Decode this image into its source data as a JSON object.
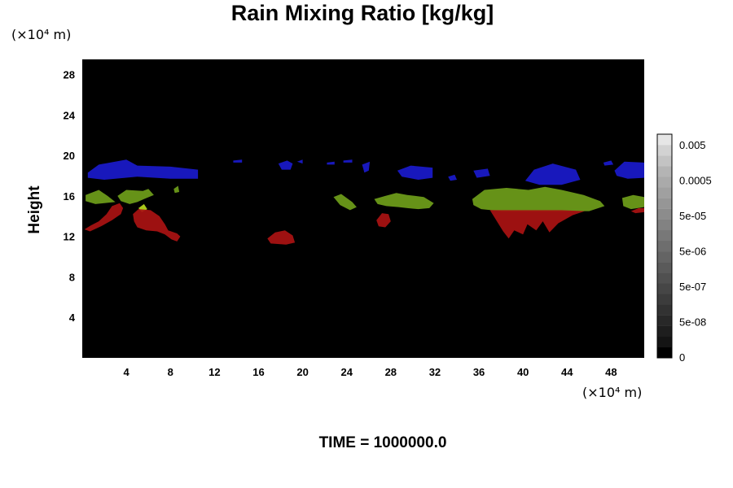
{
  "chart_data": {
    "type": "heatmap",
    "title": "Rain Mixing Ratio [kg/kg]",
    "ylabel": "Height",
    "x_unit": "(×10⁴ m)",
    "y_unit": "(×10⁴ m)",
    "xlim": [
      0,
      51
    ],
    "ylim": [
      0,
      29.5
    ],
    "x_ticks": [
      4,
      8,
      12,
      16,
      20,
      24,
      28,
      32,
      36,
      40,
      44,
      48
    ],
    "y_ticks": [
      4,
      8,
      12,
      16,
      20,
      24,
      28
    ],
    "background_color": "#000000",
    "time_label": "TIME = 1000000.0",
    "colorbar": {
      "tick_labels": [
        "0.005",
        "0.0005",
        "5e-05",
        "5e-06",
        "5e-07",
        "5e-08",
        "0"
      ],
      "colors": [
        "#000000",
        "#141414",
        "#1e1e1e",
        "#282828",
        "#323232",
        "#3c3c3c",
        "#464646",
        "#505050",
        "#5a5a5a",
        "#646464",
        "#6e6e6e",
        "#787878",
        "#828282",
        "#8c8c8c",
        "#969696",
        "#a0a0a0",
        "#aaaaaa",
        "#b4b4b4",
        "#c3c3c3",
        "#d2d2d2",
        "#e6e6e6"
      ]
    },
    "features": [
      {
        "color": "#1a1acc",
        "points": [
          [
            0.5,
            18.3
          ],
          [
            1.5,
            19.1
          ],
          [
            4,
            19.6
          ],
          [
            5,
            19
          ],
          [
            8,
            18.9
          ],
          [
            10.5,
            18.6
          ],
          [
            10.5,
            17.7
          ],
          [
            8,
            17.7
          ],
          [
            5,
            17.9
          ],
          [
            2,
            17.6
          ],
          [
            0.5,
            17.8
          ]
        ]
      },
      {
        "color": "#1a1acc",
        "points": [
          [
            13.7,
            19.5
          ],
          [
            14.5,
            19.6
          ],
          [
            14.5,
            19.3
          ],
          [
            13.7,
            19.3
          ]
        ]
      },
      {
        "color": "#1a1acc",
        "points": [
          [
            17.8,
            19.2
          ],
          [
            18.6,
            19.5
          ],
          [
            19.1,
            19.2
          ],
          [
            18.9,
            18.6
          ],
          [
            18.1,
            18.6
          ]
        ]
      },
      {
        "color": "#1a1acc",
        "points": [
          [
            19.5,
            19.4
          ],
          [
            20,
            19.6
          ],
          [
            20,
            19.2
          ]
        ]
      },
      {
        "color": "#1a1acc",
        "points": [
          [
            22.2,
            19.3
          ],
          [
            22.9,
            19.4
          ],
          [
            22.9,
            19.1
          ],
          [
            22.2,
            19.1
          ]
        ]
      },
      {
        "color": "#1a1acc",
        "points": [
          [
            23.7,
            19.5
          ],
          [
            24.5,
            19.6
          ],
          [
            24.5,
            19.3
          ],
          [
            23.7,
            19.3
          ]
        ]
      },
      {
        "color": "#1a1acc",
        "points": [
          [
            25.4,
            19.1
          ],
          [
            26.1,
            19.4
          ],
          [
            26,
            18.5
          ],
          [
            25.6,
            18.3
          ]
        ]
      },
      {
        "color": "#1a1acc",
        "points": [
          [
            28.6,
            18.5
          ],
          [
            29.8,
            19
          ],
          [
            31.8,
            18.8
          ],
          [
            31.8,
            17.8
          ],
          [
            30.5,
            17.6
          ],
          [
            29,
            17.9
          ]
        ]
      },
      {
        "color": "#1a1acc",
        "points": [
          [
            33.2,
            17.9
          ],
          [
            33.8,
            18.1
          ],
          [
            34,
            17.6
          ],
          [
            33.4,
            17.5
          ]
        ]
      },
      {
        "color": "#1a1acc",
        "points": [
          [
            35.5,
            18.5
          ],
          [
            36.8,
            18.7
          ],
          [
            37,
            18
          ],
          [
            35.8,
            17.8
          ]
        ]
      },
      {
        "color": "#1a1acc",
        "points": [
          [
            40.2,
            17.5
          ],
          [
            41,
            18.6
          ],
          [
            42.7,
            19.2
          ],
          [
            44.8,
            18.6
          ],
          [
            45.2,
            17.6
          ],
          [
            43.5,
            17.1
          ],
          [
            41.5,
            17.1
          ]
        ]
      },
      {
        "color": "#1a1acc",
        "points": [
          [
            47.3,
            19.3
          ],
          [
            48,
            19.5
          ],
          [
            48.2,
            19.1
          ],
          [
            47.4,
            19
          ]
        ]
      },
      {
        "color": "#1a1acc",
        "points": [
          [
            48.3,
            18.5
          ],
          [
            49.2,
            19.4
          ],
          [
            51,
            19.3
          ],
          [
            51,
            17.8
          ],
          [
            49.5,
            17.7
          ],
          [
            48.5,
            18
          ]
        ]
      },
      {
        "color": "#6f9e1a",
        "points": [
          [
            0.3,
            16.1
          ],
          [
            1.5,
            16.6
          ],
          [
            2.3,
            16
          ],
          [
            3,
            15.4
          ],
          [
            1.2,
            15.2
          ],
          [
            0.3,
            15.5
          ]
        ]
      },
      {
        "color": "#6f9e1a",
        "points": [
          [
            3.2,
            16
          ],
          [
            4,
            16.6
          ],
          [
            5.5,
            16.5
          ],
          [
            6,
            16.7
          ],
          [
            6.5,
            16.1
          ],
          [
            5.6,
            15.7
          ],
          [
            5,
            15.4
          ],
          [
            4.3,
            15.2
          ],
          [
            3.5,
            15.5
          ]
        ]
      },
      {
        "color": "#6f9e1a",
        "points": [
          [
            8.3,
            16.7
          ],
          [
            8.7,
            17
          ],
          [
            8.8,
            16.4
          ],
          [
            8.4,
            16.3
          ]
        ]
      },
      {
        "color": "#6f9e1a",
        "points": [
          [
            22.8,
            15.9
          ],
          [
            23.5,
            16.2
          ],
          [
            24.5,
            15.4
          ],
          [
            24.9,
            14.9
          ],
          [
            24.3,
            14.6
          ],
          [
            23.4,
            15.1
          ]
        ]
      },
      {
        "color": "#6f9e1a",
        "points": [
          [
            26.5,
            15.7
          ],
          [
            27.5,
            16
          ],
          [
            28.5,
            16.3
          ],
          [
            29.5,
            16.1
          ],
          [
            31,
            15.9
          ],
          [
            31.9,
            15.3
          ],
          [
            31.5,
            14.8
          ],
          [
            30.5,
            14.7
          ],
          [
            29.5,
            14.8
          ],
          [
            28.7,
            14.9
          ],
          [
            27.6,
            15
          ],
          [
            26.8,
            15.2
          ]
        ]
      },
      {
        "color": "#6f9e1a",
        "points": [
          [
            35.4,
            15.7
          ],
          [
            36.5,
            16.6
          ],
          [
            38.5,
            16.8
          ],
          [
            40.5,
            16.6
          ],
          [
            42,
            16.9
          ],
          [
            43.5,
            16.6
          ],
          [
            45.5,
            16.1
          ],
          [
            47,
            15.5
          ],
          [
            47.4,
            15
          ],
          [
            46,
            14.5
          ],
          [
            44,
            14.5
          ],
          [
            42,
            14.5
          ],
          [
            40,
            14.5
          ],
          [
            38,
            14.5
          ],
          [
            36.2,
            14.7
          ],
          [
            35.5,
            15.1
          ]
        ]
      },
      {
        "color": "#6f9e1a",
        "points": [
          [
            49,
            15.8
          ],
          [
            50,
            16.1
          ],
          [
            51,
            15.9
          ],
          [
            51,
            14.9
          ],
          [
            49.8,
            14.7
          ],
          [
            49.1,
            15
          ]
        ]
      },
      {
        "color": "#b7d81d",
        "points": [
          [
            5.1,
            14.8
          ],
          [
            5.6,
            15.2
          ],
          [
            5.9,
            14.7
          ],
          [
            5.4,
            14.4
          ]
        ]
      },
      {
        "color": "#aa1212",
        "points": [
          [
            0.2,
            12.7
          ],
          [
            0.8,
            13.1
          ],
          [
            1.5,
            13.5
          ],
          [
            2.2,
            14.2
          ],
          [
            2.7,
            15
          ],
          [
            3.4,
            15.3
          ],
          [
            3.7,
            14.8
          ],
          [
            3.5,
            14.2
          ],
          [
            2.7,
            13.6
          ],
          [
            1.7,
            13
          ],
          [
            0.7,
            12.5
          ]
        ]
      },
      {
        "color": "#aa1212",
        "points": [
          [
            4.6,
            14.2
          ],
          [
            5.1,
            14.7
          ],
          [
            6.2,
            14.6
          ],
          [
            7,
            14
          ],
          [
            7.5,
            13.2
          ],
          [
            7.8,
            12.6
          ],
          [
            8.6,
            12.3
          ],
          [
            8.9,
            12
          ],
          [
            8.6,
            11.5
          ],
          [
            8.1,
            11.7
          ],
          [
            7.5,
            12.2
          ],
          [
            6.8,
            12.5
          ],
          [
            5.8,
            12.6
          ],
          [
            5,
            12.9
          ],
          [
            4.7,
            13.5
          ]
        ]
      },
      {
        "color": "#aa1212",
        "points": [
          [
            16.8,
            11.8
          ],
          [
            17.5,
            12.4
          ],
          [
            18.4,
            12.6
          ],
          [
            19.1,
            12.1
          ],
          [
            19.3,
            11.4
          ],
          [
            18.5,
            11.2
          ],
          [
            17.1,
            11.3
          ]
        ]
      },
      {
        "color": "#aa1212",
        "points": [
          [
            26.7,
            13.6
          ],
          [
            27.2,
            14.3
          ],
          [
            27.8,
            14.2
          ],
          [
            28,
            13.5
          ],
          [
            27.5,
            12.9
          ],
          [
            26.9,
            13
          ]
        ]
      },
      {
        "color": "#aa1212",
        "points": [
          [
            37,
            14.6
          ],
          [
            38.2,
            12.5
          ],
          [
            38.7,
            11.8
          ],
          [
            39.2,
            12.6
          ],
          [
            40,
            12.2
          ],
          [
            40.4,
            13.2
          ],
          [
            41.2,
            12.6
          ],
          [
            41.8,
            13.5
          ],
          [
            42.4,
            12.4
          ],
          [
            43.2,
            13.3
          ],
          [
            44.5,
            14.1
          ],
          [
            45.6,
            14.5
          ],
          [
            43.5,
            14.6
          ],
          [
            40,
            14.6
          ]
        ]
      },
      {
        "color": "#aa1212",
        "points": [
          [
            49.8,
            14.5
          ],
          [
            50.5,
            14.8
          ],
          [
            51,
            14.8
          ],
          [
            51,
            14.4
          ],
          [
            50.2,
            14.3
          ]
        ]
      }
    ]
  }
}
